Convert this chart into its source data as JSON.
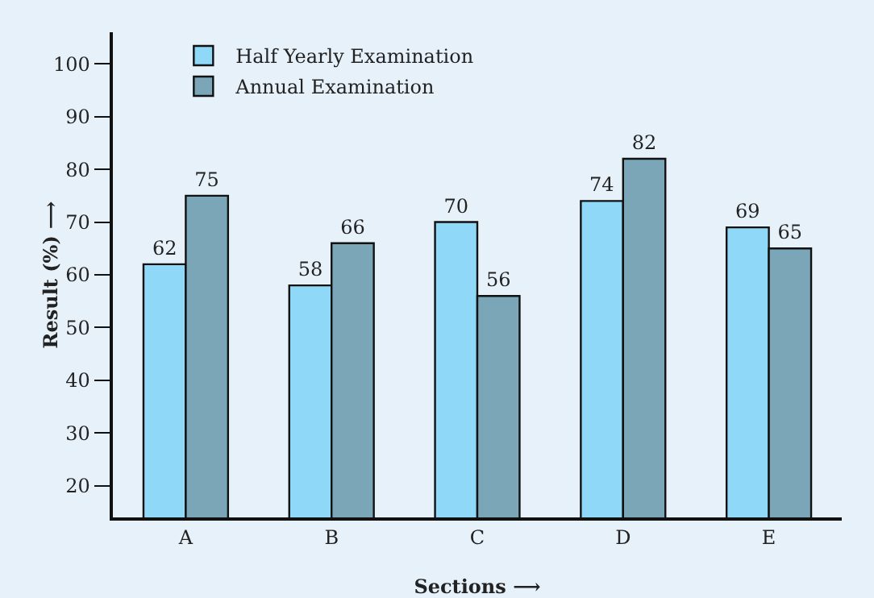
{
  "chart_data": {
    "type": "bar",
    "xlabel": "Sections ⟶",
    "ylabel": "Result (%) ⟶",
    "categories": [
      "A",
      "B",
      "C",
      "D",
      "E"
    ],
    "series": [
      {
        "name": "Half Yearly Examination",
        "color": "#8fd8f8",
        "values": [
          62,
          58,
          70,
          74,
          69
        ]
      },
      {
        "name": "Annual Examination",
        "color": "#7aa6b8",
        "values": [
          75,
          66,
          56,
          82,
          65
        ]
      }
    ],
    "ylim": [
      14,
      106
    ],
    "yticks": [
      20,
      30,
      40,
      50,
      60,
      70,
      80,
      90,
      100
    ],
    "data_labels": true,
    "legend": "top left"
  }
}
